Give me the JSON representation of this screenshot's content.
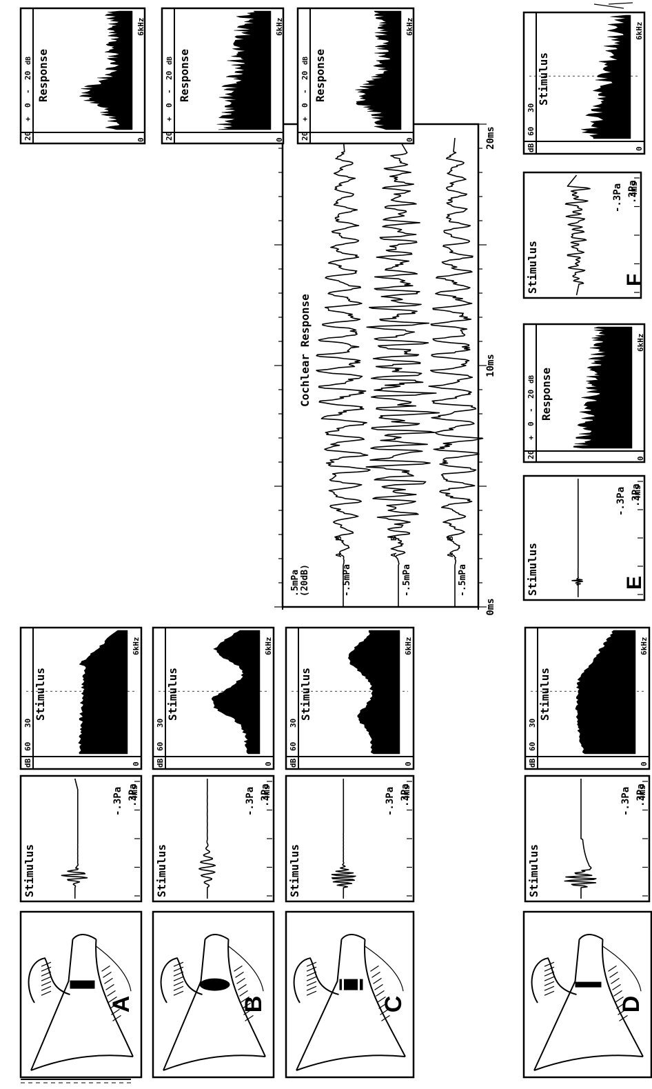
{
  "figure": {
    "main_title": "Cochlear Response",
    "letters": [
      "A",
      "B",
      "C",
      "D",
      "E",
      "F"
    ],
    "stimulus_title": "Stimulus",
    "response_title": "Response",
    "wave_pos": ".3Pa",
    "wave_neg": "-.3Pa",
    "wave_time": "4ms",
    "spec_stim_ticks": [
      "dB",
      "60",
      "30"
    ],
    "spec_resp_ticks": [
      "20",
      "+",
      "0",
      "-",
      "20"
    ],
    "spec_resp_db": "dB",
    "spec_zero": "0",
    "spec_freq": "6kHz",
    "main_time_ticks": [
      "0ms",
      "10ms",
      "20ms"
    ],
    "main_scale_labels": [
      ".5mPa",
      "(20dB)",
      "-.5mPa",
      "-.5mPa",
      "-.5mPa"
    ],
    "row_markers": [
      "A",
      "B"
    ]
  }
}
